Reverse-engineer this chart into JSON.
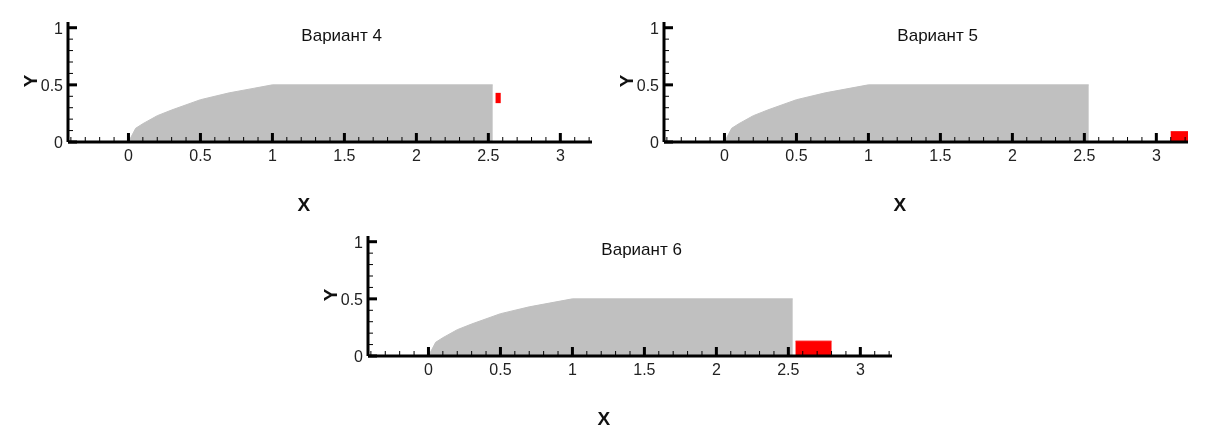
{
  "chart_data": [
    {
      "type": "area",
      "title": "Вариант 4",
      "xlabel": "X",
      "ylabel": "Y",
      "xlim": [
        -0.42,
        3.22
      ],
      "ylim": [
        0,
        1.05
      ],
      "xticks": [
        {
          "value": -0.4,
          "label": null
        },
        {
          "value": -0.3,
          "label": null
        },
        {
          "value": -0.2,
          "label": null
        },
        {
          "value": -0.1,
          "label": null
        },
        0,
        {
          "value": 0.1,
          "label": null
        },
        {
          "value": 0.2,
          "label": null
        },
        {
          "value": 0.3,
          "label": null
        },
        {
          "value": 0.4,
          "label": null
        },
        0.5,
        {
          "value": 0.6,
          "label": null
        },
        {
          "value": 0.7,
          "label": null
        },
        {
          "value": 0.8,
          "label": null
        },
        {
          "value": 0.9,
          "label": null
        },
        1,
        {
          "value": 1.1,
          "label": null
        },
        {
          "value": 1.2,
          "label": null
        },
        {
          "value": 1.3,
          "label": null
        },
        {
          "value": 1.4,
          "label": null
        },
        1.5,
        {
          "value": 1.6,
          "label": null
        },
        {
          "value": 1.7,
          "label": null
        },
        {
          "value": 1.8,
          "label": null
        },
        {
          "value": 1.9,
          "label": null
        },
        2,
        {
          "value": 2.1,
          "label": null
        },
        {
          "value": 2.2,
          "label": null
        },
        {
          "value": 2.3,
          "label": null
        },
        {
          "value": 2.4,
          "label": null
        },
        2.5,
        {
          "value": 2.6,
          "label": null
        },
        {
          "value": 2.7,
          "label": null
        },
        {
          "value": 2.8,
          "label": null
        },
        {
          "value": 2.9,
          "label": null
        },
        3,
        {
          "value": 3.1,
          "label": null
        },
        {
          "value": 3.2,
          "label": null
        }
      ],
      "yticks": [
        0,
        {
          "value": 0.1,
          "label": null
        },
        {
          "value": 0.2,
          "label": null
        },
        {
          "value": 0.3,
          "label": null
        },
        {
          "value": 0.4,
          "label": null
        },
        0.5,
        {
          "value": 0.6,
          "label": null
        },
        {
          "value": 0.7,
          "label": null
        },
        {
          "value": 0.8,
          "label": null
        },
        {
          "value": 0.9,
          "label": null
        },
        1
      ],
      "series": [
        {
          "color": "#c0c0c0",
          "x": [
            0,
            0.05,
            0.1,
            0.2,
            0.3,
            0.5,
            0.7,
            1,
            2.53
          ],
          "values": [
            0,
            0.12,
            0.16,
            0.23,
            0.28,
            0.37,
            0.43,
            0.5,
            0.5
          ]
        },
        {
          "type": "bar",
          "color": "#ff0000",
          "x": [
            2.57
          ],
          "values": [
            0.09
          ],
          "base": [
            0.34
          ]
        }
      ]
    },
    {
      "type": "area",
      "title": "Вариант 5",
      "xlabel": "X",
      "ylabel": "Y",
      "xlim": [
        -0.42,
        3.22
      ],
      "ylim": [
        0,
        1.05
      ],
      "xticks": [
        {
          "value": -0.4,
          "label": null
        },
        {
          "value": -0.3,
          "label": null
        },
        {
          "value": -0.2,
          "label": null
        },
        {
          "value": -0.1,
          "label": null
        },
        0,
        {
          "value": 0.1,
          "label": null
        },
        {
          "value": 0.2,
          "label": null
        },
        {
          "value": 0.3,
          "label": null
        },
        {
          "value": 0.4,
          "label": null
        },
        0.5,
        {
          "value": 0.6,
          "label": null
        },
        {
          "value": 0.7,
          "label": null
        },
        {
          "value": 0.8,
          "label": null
        },
        {
          "value": 0.9,
          "label": null
        },
        1,
        {
          "value": 1.1,
          "label": null
        },
        {
          "value": 1.2,
          "label": null
        },
        {
          "value": 1.3,
          "label": null
        },
        {
          "value": 1.4,
          "label": null
        },
        1.5,
        {
          "value": 1.6,
          "label": null
        },
        {
          "value": 1.7,
          "label": null
        },
        {
          "value": 1.8,
          "label": null
        },
        {
          "value": 1.9,
          "label": null
        },
        2,
        {
          "value": 2.1,
          "label": null
        },
        {
          "value": 2.2,
          "label": null
        },
        {
          "value": 2.3,
          "label": null
        },
        {
          "value": 2.4,
          "label": null
        },
        2.5,
        {
          "value": 2.6,
          "label": null
        },
        {
          "value": 2.7,
          "label": null
        },
        {
          "value": 2.8,
          "label": null
        },
        {
          "value": 2.9,
          "label": null
        },
        3,
        {
          "value": 3.1,
          "label": null
        },
        {
          "value": 3.2,
          "label": null
        }
      ],
      "yticks": [
        0,
        {
          "value": 0.1,
          "label": null
        },
        {
          "value": 0.2,
          "label": null
        },
        {
          "value": 0.3,
          "label": null
        },
        {
          "value": 0.4,
          "label": null
        },
        0.5,
        {
          "value": 0.6,
          "label": null
        },
        {
          "value": 0.7,
          "label": null
        },
        {
          "value": 0.8,
          "label": null
        },
        {
          "value": 0.9,
          "label": null
        },
        1
      ],
      "series": [
        {
          "color": "#c0c0c0",
          "x": [
            0,
            0.05,
            0.1,
            0.2,
            0.3,
            0.5,
            0.7,
            1,
            2.53
          ],
          "values": [
            0,
            0.12,
            0.16,
            0.23,
            0.28,
            0.37,
            0.43,
            0.5,
            0.5
          ]
        },
        {
          "color": "#ff0000",
          "x": [
            3.1,
            3.22
          ],
          "values": [
            0.09,
            0.09
          ]
        }
      ]
    },
    {
      "type": "area",
      "title": "Вариант 6",
      "xlabel": "X",
      "ylabel": "Y",
      "xlim": [
        -0.42,
        3.22
      ],
      "ylim": [
        0,
        1.05
      ],
      "xticks": [
        {
          "value": -0.4,
          "label": null
        },
        {
          "value": -0.3,
          "label": null
        },
        {
          "value": -0.2,
          "label": null
        },
        {
          "value": -0.1,
          "label": null
        },
        0,
        {
          "value": 0.1,
          "label": null
        },
        {
          "value": 0.2,
          "label": null
        },
        {
          "value": 0.3,
          "label": null
        },
        {
          "value": 0.4,
          "label": null
        },
        0.5,
        {
          "value": 0.6,
          "label": null
        },
        {
          "value": 0.7,
          "label": null
        },
        {
          "value": 0.8,
          "label": null
        },
        {
          "value": 0.9,
          "label": null
        },
        1,
        {
          "value": 1.1,
          "label": null
        },
        {
          "value": 1.2,
          "label": null
        },
        {
          "value": 1.3,
          "label": null
        },
        {
          "value": 1.4,
          "label": null
        },
        1.5,
        {
          "value": 1.6,
          "label": null
        },
        {
          "value": 1.7,
          "label": null
        },
        {
          "value": 1.8,
          "label": null
        },
        {
          "value": 1.9,
          "label": null
        },
        2,
        {
          "value": 2.1,
          "label": null
        },
        {
          "value": 2.2,
          "label": null
        },
        {
          "value": 2.3,
          "label": null
        },
        {
          "value": 2.4,
          "label": null
        },
        2.5,
        {
          "value": 2.6,
          "label": null
        },
        {
          "value": 2.7,
          "label": null
        },
        {
          "value": 2.8,
          "label": null
        },
        {
          "value": 2.9,
          "label": null
        },
        3,
        {
          "value": 3.1,
          "label": null
        },
        {
          "value": 3.2,
          "label": null
        }
      ],
      "yticks": [
        0,
        {
          "value": 0.1,
          "label": null
        },
        {
          "value": 0.2,
          "label": null
        },
        {
          "value": 0.3,
          "label": null
        },
        {
          "value": 0.4,
          "label": null
        },
        0.5,
        {
          "value": 0.6,
          "label": null
        },
        {
          "value": 0.7,
          "label": null
        },
        {
          "value": 0.8,
          "label": null
        },
        {
          "value": 0.9,
          "label": null
        },
        1
      ],
      "series": [
        {
          "color": "#c0c0c0",
          "x": [
            0,
            0.05,
            0.1,
            0.2,
            0.3,
            0.5,
            0.7,
            1,
            2.53
          ],
          "values": [
            0,
            0.12,
            0.16,
            0.23,
            0.28,
            0.37,
            0.43,
            0.5,
            0.5
          ]
        },
        {
          "color": "#ff0000",
          "x": [
            2.55,
            2.8
          ],
          "values": [
            0.13,
            0.13
          ]
        }
      ]
    }
  ]
}
